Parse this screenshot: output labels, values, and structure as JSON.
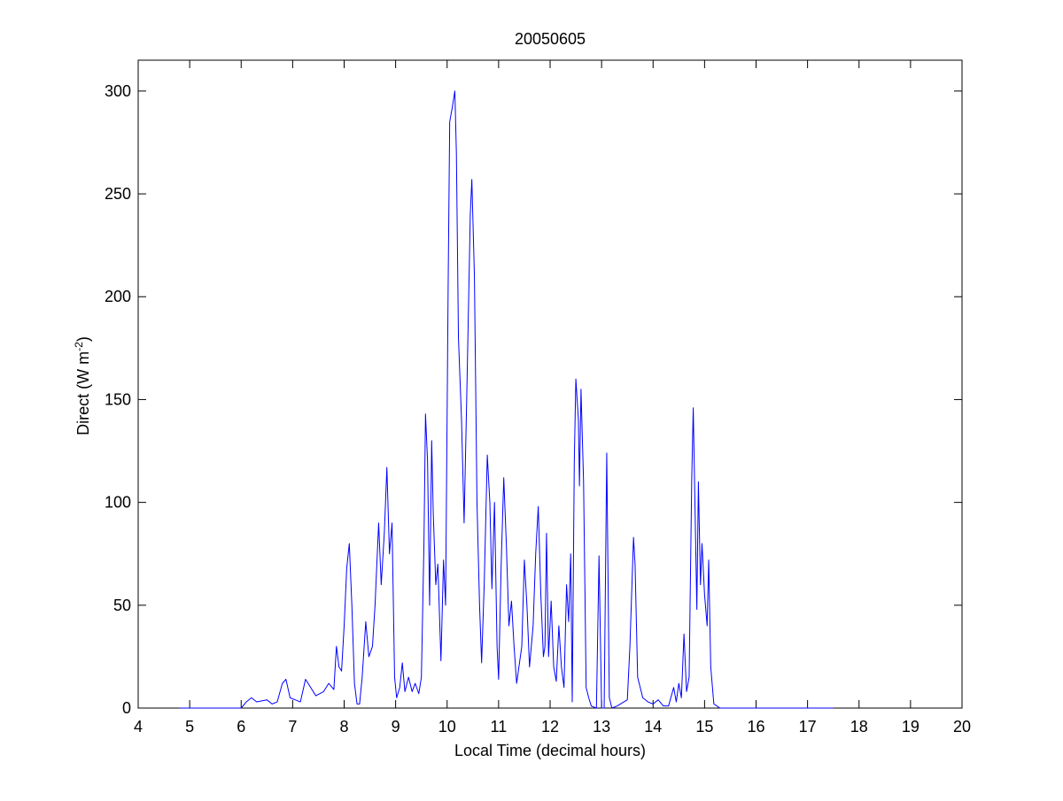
{
  "chart_data": {
    "type": "line",
    "title": "20050605",
    "xlabel": "Local Time (decimal hours)",
    "ylabel": {
      "text": "Direct (W m",
      "superscript": "-2",
      "suffix": ")"
    },
    "xlim": [
      4,
      20
    ],
    "xticks": [
      4,
      5,
      6,
      7,
      8,
      9,
      10,
      11,
      12,
      13,
      14,
      15,
      16,
      17,
      18,
      19,
      20
    ],
    "ylim": [
      0,
      315
    ],
    "yticks": [
      0,
      50,
      100,
      150,
      200,
      250,
      300
    ],
    "grid": false,
    "series": [
      {
        "color": "#0000ff",
        "x": [
          4.8,
          6.0,
          6.1,
          6.2,
          6.3,
          6.5,
          6.6,
          6.7,
          6.8,
          6.87,
          6.95,
          7.05,
          7.15,
          7.25,
          7.35,
          7.45,
          7.6,
          7.7,
          7.8,
          7.85,
          7.9,
          7.95,
          8.0,
          8.05,
          8.1,
          8.15,
          8.2,
          8.25,
          8.3,
          8.35,
          8.42,
          8.48,
          8.55,
          8.6,
          8.67,
          8.72,
          8.78,
          8.83,
          8.88,
          8.93,
          8.98,
          9.02,
          9.08,
          9.13,
          9.18,
          9.25,
          9.32,
          9.38,
          9.45,
          9.5,
          9.55,
          9.58,
          9.62,
          9.66,
          9.7,
          9.73,
          9.78,
          9.82,
          9.88,
          9.93,
          9.97,
          10.02,
          10.05,
          10.1,
          10.15,
          10.18,
          10.22,
          10.28,
          10.33,
          10.38,
          10.45,
          10.48,
          10.53,
          10.58,
          10.63,
          10.67,
          10.72,
          10.78,
          10.83,
          10.87,
          10.92,
          10.97,
          11.0,
          11.05,
          11.1,
          11.15,
          11.2,
          11.25,
          11.3,
          11.35,
          11.45,
          11.5,
          11.55,
          11.6,
          11.67,
          11.72,
          11.77,
          11.82,
          11.87,
          11.9,
          11.93,
          11.97,
          12.02,
          12.07,
          12.12,
          12.17,
          12.22,
          12.27,
          12.32,
          12.36,
          12.4,
          12.43,
          12.47,
          12.5,
          12.55,
          12.57,
          12.6,
          12.65,
          12.7,
          12.75,
          12.8,
          12.9,
          12.95,
          13.0,
          13.05,
          13.1,
          13.15,
          13.2,
          13.3,
          13.5,
          13.55,
          13.62,
          13.65,
          13.7,
          13.75,
          13.8,
          13.9,
          14.0,
          14.1,
          14.2,
          14.3,
          14.4,
          14.45,
          14.5,
          14.55,
          14.6,
          14.65,
          14.7,
          14.75,
          14.78,
          14.82,
          14.85,
          14.88,
          14.92,
          14.95,
          15.0,
          15.05,
          15.08,
          15.12,
          15.18,
          15.3,
          17.5
        ],
        "values": [
          0,
          0,
          3,
          5,
          3,
          4,
          2,
          3,
          12,
          14,
          5,
          4,
          3,
          14,
          10,
          6,
          8,
          12,
          9,
          30,
          20,
          18,
          40,
          68,
          80,
          50,
          12,
          2,
          2,
          15,
          42,
          25,
          30,
          50,
          90,
          60,
          85,
          117,
          75,
          90,
          15,
          5,
          10,
          22,
          8,
          15,
          8,
          12,
          7,
          15,
          80,
          143,
          120,
          50,
          130,
          95,
          60,
          70,
          23,
          72,
          50,
          205,
          285,
          292,
          300,
          270,
          180,
          140,
          90,
          150,
          240,
          257,
          210,
          100,
          50,
          22,
          60,
          123,
          100,
          58,
          100,
          30,
          14,
          70,
          112,
          80,
          40,
          52,
          30,
          12,
          30,
          72,
          50,
          20,
          40,
          75,
          98,
          55,
          25,
          30,
          85,
          25,
          52,
          20,
          13,
          40,
          20,
          10,
          60,
          42,
          75,
          3,
          120,
          160,
          140,
          108,
          155,
          110,
          10,
          5,
          1,
          0,
          74,
          0,
          0,
          124,
          5,
          0,
          1,
          4,
          30,
          83,
          70,
          15,
          10,
          5,
          3,
          2,
          4,
          1,
          1,
          10,
          3,
          12,
          5,
          36,
          8,
          15,
          110,
          146,
          90,
          48,
          110,
          60,
          80,
          55,
          40,
          72,
          20,
          2,
          0,
          0
        ]
      }
    ]
  }
}
